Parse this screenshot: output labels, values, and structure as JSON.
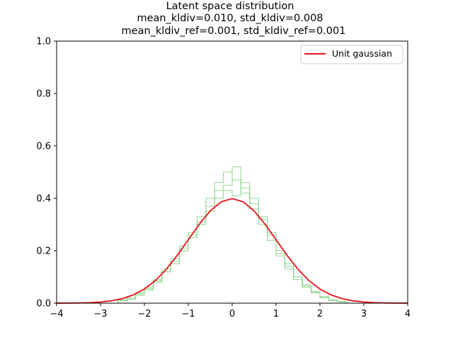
{
  "chart_data": {
    "type": "line",
    "title_lines": [
      "Latent space distribution",
      "mean_kldiv=0.010, std_kldiv=0.008",
      "mean_kldiv_ref=0.001, std_kldiv_ref=0.001"
    ],
    "xlabel": "",
    "ylabel": "",
    "xlim": [
      -4,
      4
    ],
    "ylim": [
      0,
      1.0
    ],
    "xticks": [
      -4,
      -3,
      -2,
      -1,
      0,
      1,
      2,
      3,
      4
    ],
    "xtick_labels": [
      "−4",
      "−3",
      "−2",
      "−1",
      "0",
      "1",
      "2",
      "3",
      "4"
    ],
    "yticks": [
      0,
      0.2,
      0.4,
      0.6,
      0.8,
      1.0
    ],
    "ytick_labels": [
      "0.0",
      "0.2",
      "0.4",
      "0.6",
      "0.8",
      "1.0"
    ],
    "grid": false,
    "legend": {
      "placement": "top-right",
      "entries": [
        "Unit gaussian"
      ]
    },
    "colors": {
      "curve": "#e8141c",
      "histogram": "#7fcf7f"
    },
    "series": [
      {
        "name": "Unit gaussian",
        "kind": "line",
        "x": [
          -4,
          -3.75,
          -3.5,
          -3.25,
          -3,
          -2.75,
          -2.5,
          -2.25,
          -2,
          -1.75,
          -1.5,
          -1.25,
          -1,
          -0.75,
          -0.5,
          -0.25,
          0,
          0.25,
          0.5,
          0.75,
          1,
          1.25,
          1.5,
          1.75,
          2,
          2.25,
          2.5,
          2.75,
          3,
          3.25,
          3.5,
          3.75,
          4
        ],
        "y": [
          0.0001,
          0.0004,
          0.0009,
          0.002,
          0.0044,
          0.0091,
          0.0175,
          0.0317,
          0.054,
          0.0863,
          0.1295,
          0.1826,
          0.242,
          0.3011,
          0.3521,
          0.3867,
          0.3989,
          0.3867,
          0.3521,
          0.3011,
          0.242,
          0.1826,
          0.1295,
          0.0863,
          0.054,
          0.0317,
          0.0175,
          0.0091,
          0.0044,
          0.002,
          0.0009,
          0.0004,
          0.0001
        ]
      },
      {
        "kind": "step-histogram",
        "bin_edges": [
          -2.6,
          -2.4,
          -2.2,
          -2.0,
          -1.8,
          -1.6,
          -1.4,
          -1.2,
          -1.0,
          -0.8,
          -0.6,
          -0.4,
          -0.2,
          0.0,
          0.2,
          0.4,
          0.6,
          0.8,
          1.0,
          1.2,
          1.4,
          1.6,
          1.8,
          2.0,
          2.2,
          2.4,
          2.6
        ],
        "counts": [
          0.01,
          0.02,
          0.04,
          0.06,
          0.09,
          0.13,
          0.17,
          0.22,
          0.27,
          0.33,
          0.4,
          0.46,
          0.5,
          0.47,
          0.42,
          0.36,
          0.3,
          0.24,
          0.18,
          0.13,
          0.09,
          0.06,
          0.04,
          0.02,
          0.01,
          0.005
        ]
      },
      {
        "kind": "step-histogram",
        "bin_edges": [
          -2.6,
          -2.4,
          -2.2,
          -2.0,
          -1.8,
          -1.6,
          -1.4,
          -1.2,
          -1.0,
          -0.8,
          -0.6,
          -0.4,
          -0.2,
          0.0,
          0.2,
          0.4,
          0.6,
          0.8,
          1.0,
          1.2,
          1.4,
          1.6,
          1.8,
          2.0,
          2.2,
          2.4,
          2.6
        ],
        "counts": [
          0.01,
          0.015,
          0.03,
          0.05,
          0.08,
          0.12,
          0.16,
          0.2,
          0.26,
          0.31,
          0.37,
          0.43,
          0.45,
          0.52,
          0.44,
          0.38,
          0.32,
          0.26,
          0.2,
          0.14,
          0.1,
          0.07,
          0.04,
          0.025,
          0.012,
          0.006
        ]
      },
      {
        "kind": "step-histogram",
        "bin_edges": [
          -2.6,
          -2.4,
          -2.2,
          -2.0,
          -1.8,
          -1.6,
          -1.4,
          -1.2,
          -1.0,
          -0.8,
          -0.6,
          -0.4,
          -0.2,
          0.0,
          0.2,
          0.4,
          0.6,
          0.8,
          1.0,
          1.2,
          1.4,
          1.6,
          1.8,
          2.0,
          2.2,
          2.4,
          2.6
        ],
        "counts": [
          0.012,
          0.02,
          0.035,
          0.055,
          0.085,
          0.12,
          0.15,
          0.21,
          0.25,
          0.3,
          0.35,
          0.4,
          0.43,
          0.41,
          0.46,
          0.4,
          0.33,
          0.27,
          0.19,
          0.15,
          0.1,
          0.065,
          0.045,
          0.025,
          0.012,
          0.006
        ]
      }
    ]
  }
}
